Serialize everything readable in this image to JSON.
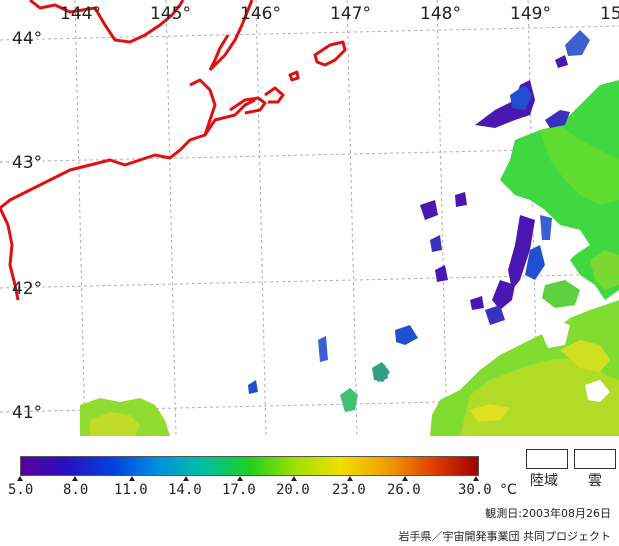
{
  "map": {
    "lon_labels": [
      "144°",
      "145°",
      "146°",
      "147°",
      "148°",
      "149°",
      "15"
    ],
    "lat_labels": [
      "44°",
      "43°",
      "42°",
      "41°"
    ],
    "colors": {
      "coast": "#e01010",
      "grid": "#b0b0b0",
      "cold": "#4a18b0",
      "blue": "#2050d0",
      "green": "#30d030",
      "yellow_green": "#a0e020",
      "yellow": "#e8e020"
    }
  },
  "legend": {
    "ticks": [
      "5.0",
      "8.0",
      "11.0",
      "14.0",
      "17.0",
      "20.0",
      "23.0",
      "26.0",
      "30.0"
    ],
    "unit": "°C",
    "land_label": "陸域",
    "cloud_label": "雲",
    "gradient": [
      "#5a00a0",
      "#2a10c0",
      "#0040e0",
      "#0090e0",
      "#00c0a0",
      "#20d020",
      "#a0e000",
      "#f0e000",
      "#f0a000",
      "#e04000",
      "#a00000"
    ]
  },
  "observation": "観測日:2003年08月26日",
  "credit": "岩手県／宇宙開発事業団 共同プロジェクト"
}
